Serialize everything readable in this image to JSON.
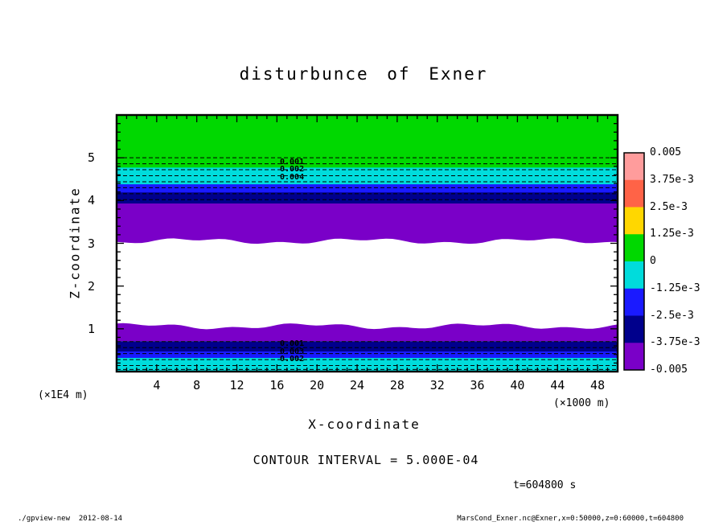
{
  "title": "disturbunce of Exner",
  "plot": {
    "x_axis": {
      "label": "X-coordinate",
      "unit": "(×1000 m)",
      "tick_labels": [
        "4",
        "8",
        "12",
        "16",
        "20",
        "24",
        "28",
        "32",
        "36",
        "40",
        "44",
        "48"
      ]
    },
    "y_axis": {
      "label": "Z-coordinate",
      "unit": "(×1E4 m)",
      "tick_labels": [
        "1",
        "2",
        "3",
        "4",
        "5"
      ]
    }
  },
  "colorbar": {
    "tick_labels": [
      "0.005",
      "3.75e-3",
      "2.5e-3",
      "1.25e-3",
      "0",
      "-1.25e-3",
      "-2.5e-3",
      "-3.75e-3",
      "-0.005"
    ]
  },
  "captions": {
    "contour_interval": "CONTOUR INTERVAL = 5.000E-04",
    "timestamp": "t=604800 s"
  },
  "footer": {
    "left": "./gpview-new  2012-08-14",
    "right": "MarsCond_Exner.nc@Exner,x=0:50000,z=0:60000,t=604800"
  },
  "chart_data": {
    "type": "heatmap",
    "subtype": "filled-contour-bands",
    "title": "disturbunce of Exner",
    "xlabel": "X-coordinate",
    "ylabel": "Z-coordinate",
    "x_unit": "×1000 m",
    "y_unit": "×1E4 m",
    "xlim": [
      0,
      50
    ],
    "ylim": [
      0,
      6
    ],
    "x_major_ticks": [
      4,
      8,
      12,
      16,
      20,
      24,
      28,
      32,
      36,
      40,
      44,
      48
    ],
    "x_minor_step": 1,
    "y_major_ticks": [
      1,
      2,
      3,
      4,
      5
    ],
    "y_minor_step": 0.2,
    "contour_interval": 0.0005,
    "time_seconds": 604800,
    "grid": false,
    "legend_position": "right",
    "bands": [
      {
        "color": "#00d800",
        "z_top": 6.0,
        "z_bottom": 4.77,
        "value_range": [
          0,
          0.00125
        ]
      },
      {
        "color": "#00dcdc",
        "z_top": 4.77,
        "z_bottom": 4.38,
        "value_range": [
          -0.00125,
          0
        ]
      },
      {
        "color": "#1a1aff",
        "z_top": 4.38,
        "z_bottom": 4.19,
        "value_range": [
          -0.0025,
          -0.00125
        ]
      },
      {
        "color": "#00008c",
        "z_top": 4.19,
        "z_bottom": 3.93,
        "value_range": [
          -0.00375,
          -0.0025
        ]
      },
      {
        "color": "#7a00c8",
        "z_top": 3.93,
        "z_bottom": 3.05,
        "value_range": [
          -0.005,
          -0.00375
        ],
        "wavy_edge": "bottom"
      },
      {
        "color": "#ffffff",
        "z_top": 3.05,
        "z_bottom": 1.06,
        "note": "unshaded (beyond -0.005)"
      },
      {
        "color": "#7a00c8",
        "z_top": 1.06,
        "z_bottom": 0.71,
        "value_range": [
          -0.005,
          -0.00375
        ],
        "wavy_edge": "top"
      },
      {
        "color": "#00008c",
        "z_top": 0.71,
        "z_bottom": 0.47,
        "value_range": [
          -0.00375,
          -0.0025
        ]
      },
      {
        "color": "#1a1aff",
        "z_top": 0.47,
        "z_bottom": 0.32,
        "value_range": [
          -0.0025,
          -0.00125
        ]
      },
      {
        "color": "#00dcdc",
        "z_top": 0.32,
        "z_bottom": 0.0,
        "value_range": [
          -0.00125,
          0
        ]
      }
    ],
    "dashed_contours_z": [
      5.0,
      4.86,
      4.72,
      4.58,
      4.44,
      4.3,
      4.16,
      4.02,
      0.7,
      0.56,
      0.42,
      0.28,
      0.14,
      0.05
    ],
    "contour_labels": [
      {
        "text": "0.001",
        "x": 17.5,
        "z": 4.88
      },
      {
        "text": "0.002",
        "x": 17.5,
        "z": 4.7
      },
      {
        "text": "0.004",
        "x": 17.5,
        "z": 4.52
      },
      {
        "text": "0.001",
        "x": 17.5,
        "z": 0.62
      },
      {
        "text": "0.003",
        "x": 17.5,
        "z": 0.44
      },
      {
        "text": "0.002",
        "x": 17.5,
        "z": 0.26
      }
    ],
    "colorbar_levels": [
      0.005,
      0.00375,
      0.0025,
      0.00125,
      0,
      -0.00125,
      -0.0025,
      -0.00375,
      -0.005
    ],
    "colorbar_colors_top_to_bottom": [
      "#ff9c9c",
      "#ff6347",
      "#ffd700",
      "#00d800",
      "#00dcdc",
      "#1a1aff",
      "#00008c",
      "#7a00c8"
    ]
  }
}
